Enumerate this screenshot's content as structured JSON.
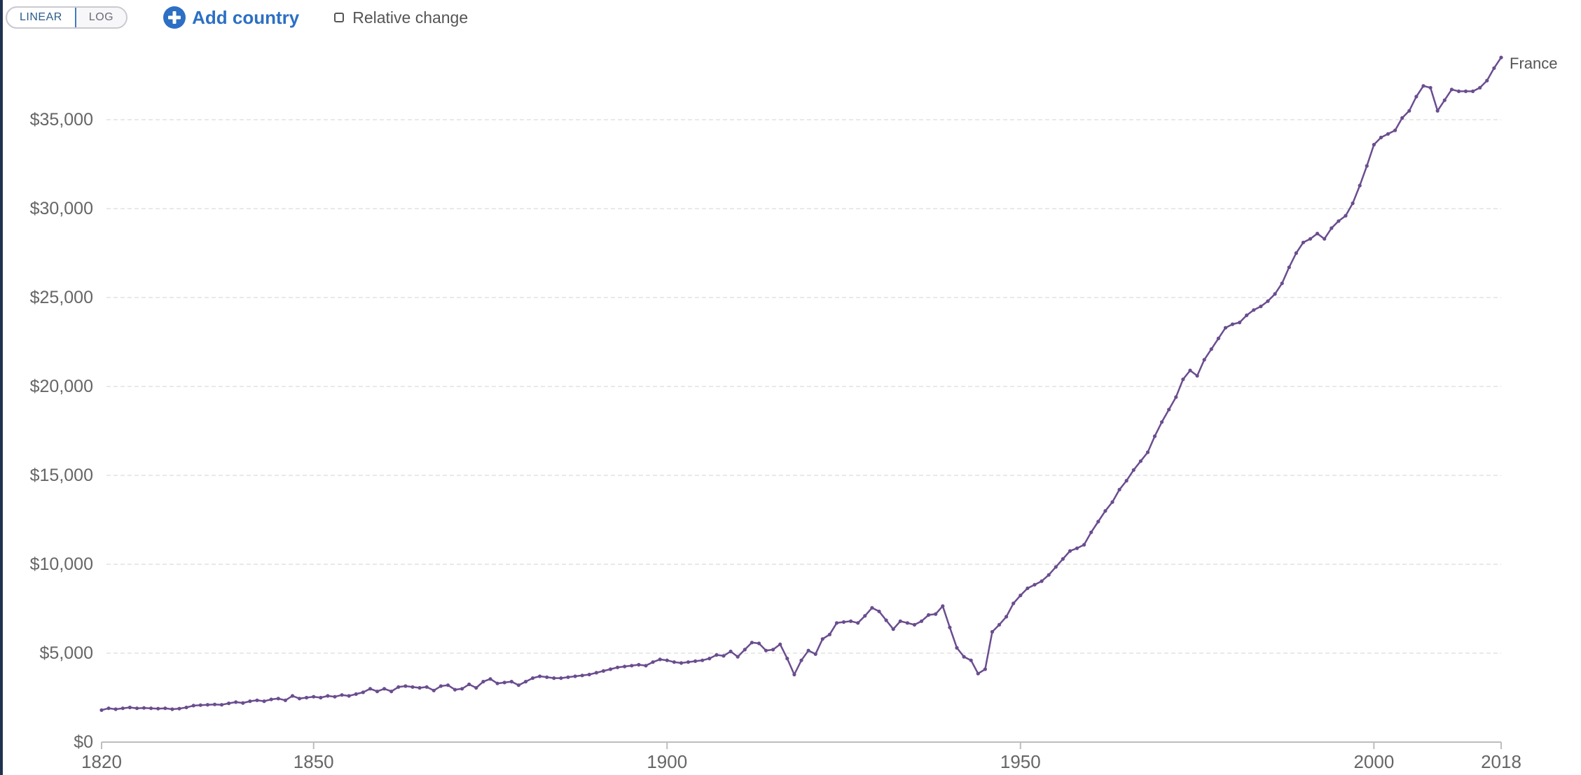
{
  "controls": {
    "linear_label": "LINEAR",
    "log_label": "LOG",
    "add_country_label": "Add country",
    "relative_change_label": "Relative change",
    "active_scale": "linear"
  },
  "colors": {
    "series": "#6a4d8f",
    "grid": "#e2e2e2",
    "axis_text": "#666666",
    "link": "#2c6fc4",
    "frame": "#1f3250"
  },
  "chart_data": {
    "type": "line",
    "title": "",
    "xlabel": "",
    "ylabel": "",
    "xlim": [
      1820,
      2018
    ],
    "ylim": [
      0,
      38500
    ],
    "xticks": [
      1820,
      1850,
      1900,
      1950,
      2000,
      2018
    ],
    "xtick_labels": [
      "1820",
      "1850",
      "1900",
      "1950",
      "2000",
      "2018"
    ],
    "yticks": [
      0,
      5000,
      10000,
      15000,
      20000,
      25000,
      30000,
      35000
    ],
    "ytick_labels": [
      "$0",
      "$5,000",
      "$10,000",
      "$15,000",
      "$20,000",
      "$25,000",
      "$30,000",
      "$35,000"
    ],
    "grid": true,
    "series": [
      {
        "name": "France",
        "color": "#6a4d8f",
        "points": [
          [
            1820,
            1800
          ],
          [
            1821,
            1900
          ],
          [
            1822,
            1850
          ],
          [
            1823,
            1900
          ],
          [
            1824,
            1950
          ],
          [
            1825,
            1900
          ],
          [
            1826,
            1920
          ],
          [
            1827,
            1900
          ],
          [
            1828,
            1880
          ],
          [
            1829,
            1900
          ],
          [
            1830,
            1850
          ],
          [
            1831,
            1880
          ],
          [
            1832,
            1950
          ],
          [
            1833,
            2050
          ],
          [
            1834,
            2080
          ],
          [
            1835,
            2100
          ],
          [
            1836,
            2120
          ],
          [
            1837,
            2100
          ],
          [
            1838,
            2180
          ],
          [
            1839,
            2250
          ],
          [
            1840,
            2200
          ],
          [
            1841,
            2300
          ],
          [
            1842,
            2350
          ],
          [
            1843,
            2300
          ],
          [
            1844,
            2400
          ],
          [
            1845,
            2450
          ],
          [
            1846,
            2350
          ],
          [
            1847,
            2600
          ],
          [
            1848,
            2450
          ],
          [
            1849,
            2500
          ],
          [
            1850,
            2550
          ],
          [
            1851,
            2500
          ],
          [
            1852,
            2600
          ],
          [
            1853,
            2550
          ],
          [
            1854,
            2650
          ],
          [
            1855,
            2600
          ],
          [
            1856,
            2700
          ],
          [
            1857,
            2800
          ],
          [
            1858,
            3000
          ],
          [
            1859,
            2850
          ],
          [
            1860,
            3000
          ],
          [
            1861,
            2850
          ],
          [
            1862,
            3100
          ],
          [
            1863,
            3150
          ],
          [
            1864,
            3100
          ],
          [
            1865,
            3050
          ],
          [
            1866,
            3100
          ],
          [
            1867,
            2900
          ],
          [
            1868,
            3150
          ],
          [
            1869,
            3200
          ],
          [
            1870,
            2950
          ],
          [
            1871,
            3000
          ],
          [
            1872,
            3250
          ],
          [
            1873,
            3050
          ],
          [
            1874,
            3400
          ],
          [
            1875,
            3550
          ],
          [
            1876,
            3300
          ],
          [
            1877,
            3350
          ],
          [
            1878,
            3400
          ],
          [
            1879,
            3200
          ],
          [
            1880,
            3400
          ],
          [
            1881,
            3600
          ],
          [
            1882,
            3700
          ],
          [
            1883,
            3650
          ],
          [
            1884,
            3600
          ],
          [
            1885,
            3600
          ],
          [
            1886,
            3650
          ],
          [
            1887,
            3700
          ],
          [
            1888,
            3750
          ],
          [
            1889,
            3800
          ],
          [
            1890,
            3900
          ],
          [
            1891,
            4000
          ],
          [
            1892,
            4100
          ],
          [
            1893,
            4200
          ],
          [
            1894,
            4250
          ],
          [
            1895,
            4300
          ],
          [
            1896,
            4350
          ],
          [
            1897,
            4300
          ],
          [
            1898,
            4500
          ],
          [
            1899,
            4650
          ],
          [
            1900,
            4600
          ],
          [
            1901,
            4500
          ],
          [
            1902,
            4450
          ],
          [
            1903,
            4500
          ],
          [
            1904,
            4550
          ],
          [
            1905,
            4600
          ],
          [
            1906,
            4700
          ],
          [
            1907,
            4900
          ],
          [
            1908,
            4850
          ],
          [
            1909,
            5100
          ],
          [
            1910,
            4800
          ],
          [
            1911,
            5200
          ],
          [
            1912,
            5600
          ],
          [
            1913,
            5550
          ],
          [
            1914,
            5150
          ],
          [
            1915,
            5200
          ],
          [
            1916,
            5500
          ],
          [
            1917,
            4700
          ],
          [
            1918,
            3800
          ],
          [
            1919,
            4600
          ],
          [
            1920,
            5150
          ],
          [
            1921,
            4950
          ],
          [
            1922,
            5800
          ],
          [
            1923,
            6050
          ],
          [
            1924,
            6700
          ],
          [
            1925,
            6750
          ],
          [
            1926,
            6800
          ],
          [
            1927,
            6700
          ],
          [
            1928,
            7100
          ],
          [
            1929,
            7550
          ],
          [
            1930,
            7350
          ],
          [
            1931,
            6850
          ],
          [
            1932,
            6350
          ],
          [
            1933,
            6800
          ],
          [
            1934,
            6700
          ],
          [
            1935,
            6600
          ],
          [
            1936,
            6800
          ],
          [
            1937,
            7150
          ],
          [
            1938,
            7200
          ],
          [
            1939,
            7650
          ],
          [
            1940,
            6450
          ],
          [
            1941,
            5300
          ],
          [
            1942,
            4800
          ],
          [
            1943,
            4600
          ],
          [
            1944,
            3850
          ],
          [
            1945,
            4100
          ],
          [
            1946,
            6200
          ],
          [
            1947,
            6600
          ],
          [
            1948,
            7050
          ],
          [
            1949,
            7800
          ],
          [
            1950,
            8250
          ],
          [
            1951,
            8650
          ],
          [
            1952,
            8850
          ],
          [
            1953,
            9050
          ],
          [
            1954,
            9400
          ],
          [
            1955,
            9850
          ],
          [
            1956,
            10300
          ],
          [
            1957,
            10750
          ],
          [
            1958,
            10900
          ],
          [
            1959,
            11100
          ],
          [
            1960,
            11800
          ],
          [
            1961,
            12400
          ],
          [
            1962,
            13000
          ],
          [
            1963,
            13500
          ],
          [
            1964,
            14200
          ],
          [
            1965,
            14700
          ],
          [
            1966,
            15300
          ],
          [
            1967,
            15800
          ],
          [
            1968,
            16300
          ],
          [
            1969,
            17200
          ],
          [
            1970,
            18000
          ],
          [
            1971,
            18700
          ],
          [
            1972,
            19400
          ],
          [
            1973,
            20400
          ],
          [
            1974,
            20900
          ],
          [
            1975,
            20600
          ],
          [
            1976,
            21500
          ],
          [
            1977,
            22100
          ],
          [
            1978,
            22700
          ],
          [
            1979,
            23300
          ],
          [
            1980,
            23500
          ],
          [
            1981,
            23600
          ],
          [
            1982,
            24000
          ],
          [
            1983,
            24300
          ],
          [
            1984,
            24500
          ],
          [
            1985,
            24800
          ],
          [
            1986,
            25200
          ],
          [
            1987,
            25800
          ],
          [
            1988,
            26700
          ],
          [
            1989,
            27500
          ],
          [
            1990,
            28100
          ],
          [
            1991,
            28300
          ],
          [
            1992,
            28600
          ],
          [
            1993,
            28300
          ],
          [
            1994,
            28900
          ],
          [
            1995,
            29300
          ],
          [
            1996,
            29600
          ],
          [
            1997,
            30300
          ],
          [
            1998,
            31300
          ],
          [
            1999,
            32400
          ],
          [
            2000,
            33600
          ],
          [
            2001,
            34000
          ],
          [
            2002,
            34200
          ],
          [
            2003,
            34400
          ],
          [
            2004,
            35100
          ],
          [
            2005,
            35500
          ],
          [
            2006,
            36300
          ],
          [
            2007,
            36900
          ],
          [
            2008,
            36800
          ],
          [
            2009,
            35500
          ],
          [
            2010,
            36100
          ],
          [
            2011,
            36700
          ],
          [
            2012,
            36600
          ],
          [
            2013,
            36600
          ],
          [
            2014,
            36600
          ],
          [
            2015,
            36800
          ],
          [
            2016,
            37200
          ],
          [
            2017,
            37900
          ],
          [
            2018,
            38500
          ]
        ]
      }
    ]
  }
}
